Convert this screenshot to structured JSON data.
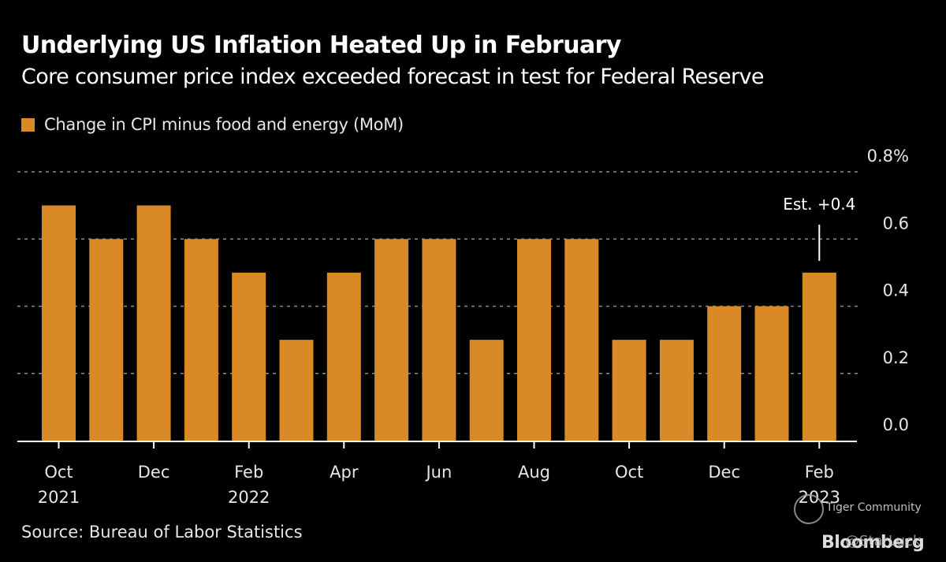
{
  "header": {
    "title": "Underlying US Inflation Heated Up in February",
    "subtitle": "Core consumer price index exceeded forecast in test for Federal Reserve"
  },
  "footer": {
    "source": "Source: Bureau of Labor Statistics"
  },
  "watermarks": {
    "community": "Tiger Community",
    "brand": "Bloomberg",
    "handle": "@StarLuck"
  },
  "colors": {
    "bar": "#d98a26",
    "background": "#000000",
    "gridline": "#8a8a8a",
    "axis": "#ffffff"
  },
  "chart_data": {
    "type": "bar",
    "title": "Underlying US Inflation Heated Up in February",
    "subtitle": "Core consumer price index exceeded forecast in test for Federal Reserve",
    "xlabel": "",
    "ylabel": "",
    "y_unit_suffix": "%",
    "ylim": [
      0,
      0.8
    ],
    "yticks": [
      0.0,
      0.2,
      0.4,
      0.6,
      0.8
    ],
    "ytick_labels": [
      "0.0",
      "0.2",
      "0.4",
      "0.6",
      "0.8%"
    ],
    "y_axis_side": "right",
    "grid": true,
    "legend": {
      "placement": "top-left",
      "entries": [
        "Change in CPI minus food and energy (MoM)"
      ]
    },
    "categories": [
      "Oct 2021",
      "Nov 2021",
      "Dec 2021",
      "Jan 2022",
      "Feb 2022",
      "Mar 2022",
      "Apr 2022",
      "May 2022",
      "Jun 2022",
      "Jul 2022",
      "Aug 2022",
      "Sep 2022",
      "Oct 2022",
      "Nov 2022",
      "Dec 2022",
      "Jan 2023",
      "Feb 2023"
    ],
    "series": [
      {
        "name": "Change in CPI minus food and energy (MoM)",
        "values": [
          0.7,
          0.6,
          0.7,
          0.6,
          0.5,
          0.3,
          0.5,
          0.6,
          0.6,
          0.3,
          0.6,
          0.6,
          0.3,
          0.3,
          0.4,
          0.4,
          0.5
        ]
      }
    ],
    "xtick_labels": [
      {
        "index": 0,
        "line1": "Oct",
        "line2": "2021"
      },
      {
        "index": 2,
        "line1": "Dec",
        "line2": ""
      },
      {
        "index": 4,
        "line1": "Feb",
        "line2": "2022"
      },
      {
        "index": 6,
        "line1": "Apr",
        "line2": ""
      },
      {
        "index": 8,
        "line1": "Jun",
        "line2": ""
      },
      {
        "index": 10,
        "line1": "Aug",
        "line2": ""
      },
      {
        "index": 12,
        "line1": "Oct",
        "line2": ""
      },
      {
        "index": 14,
        "line1": "Dec",
        "line2": ""
      },
      {
        "index": 16,
        "line1": "Feb",
        "line2": "2023"
      }
    ],
    "annotations": [
      {
        "index": 16,
        "text": "Est. +0.4",
        "value": 0.4
      }
    ],
    "source": "Source: Bureau of Labor Statistics"
  }
}
